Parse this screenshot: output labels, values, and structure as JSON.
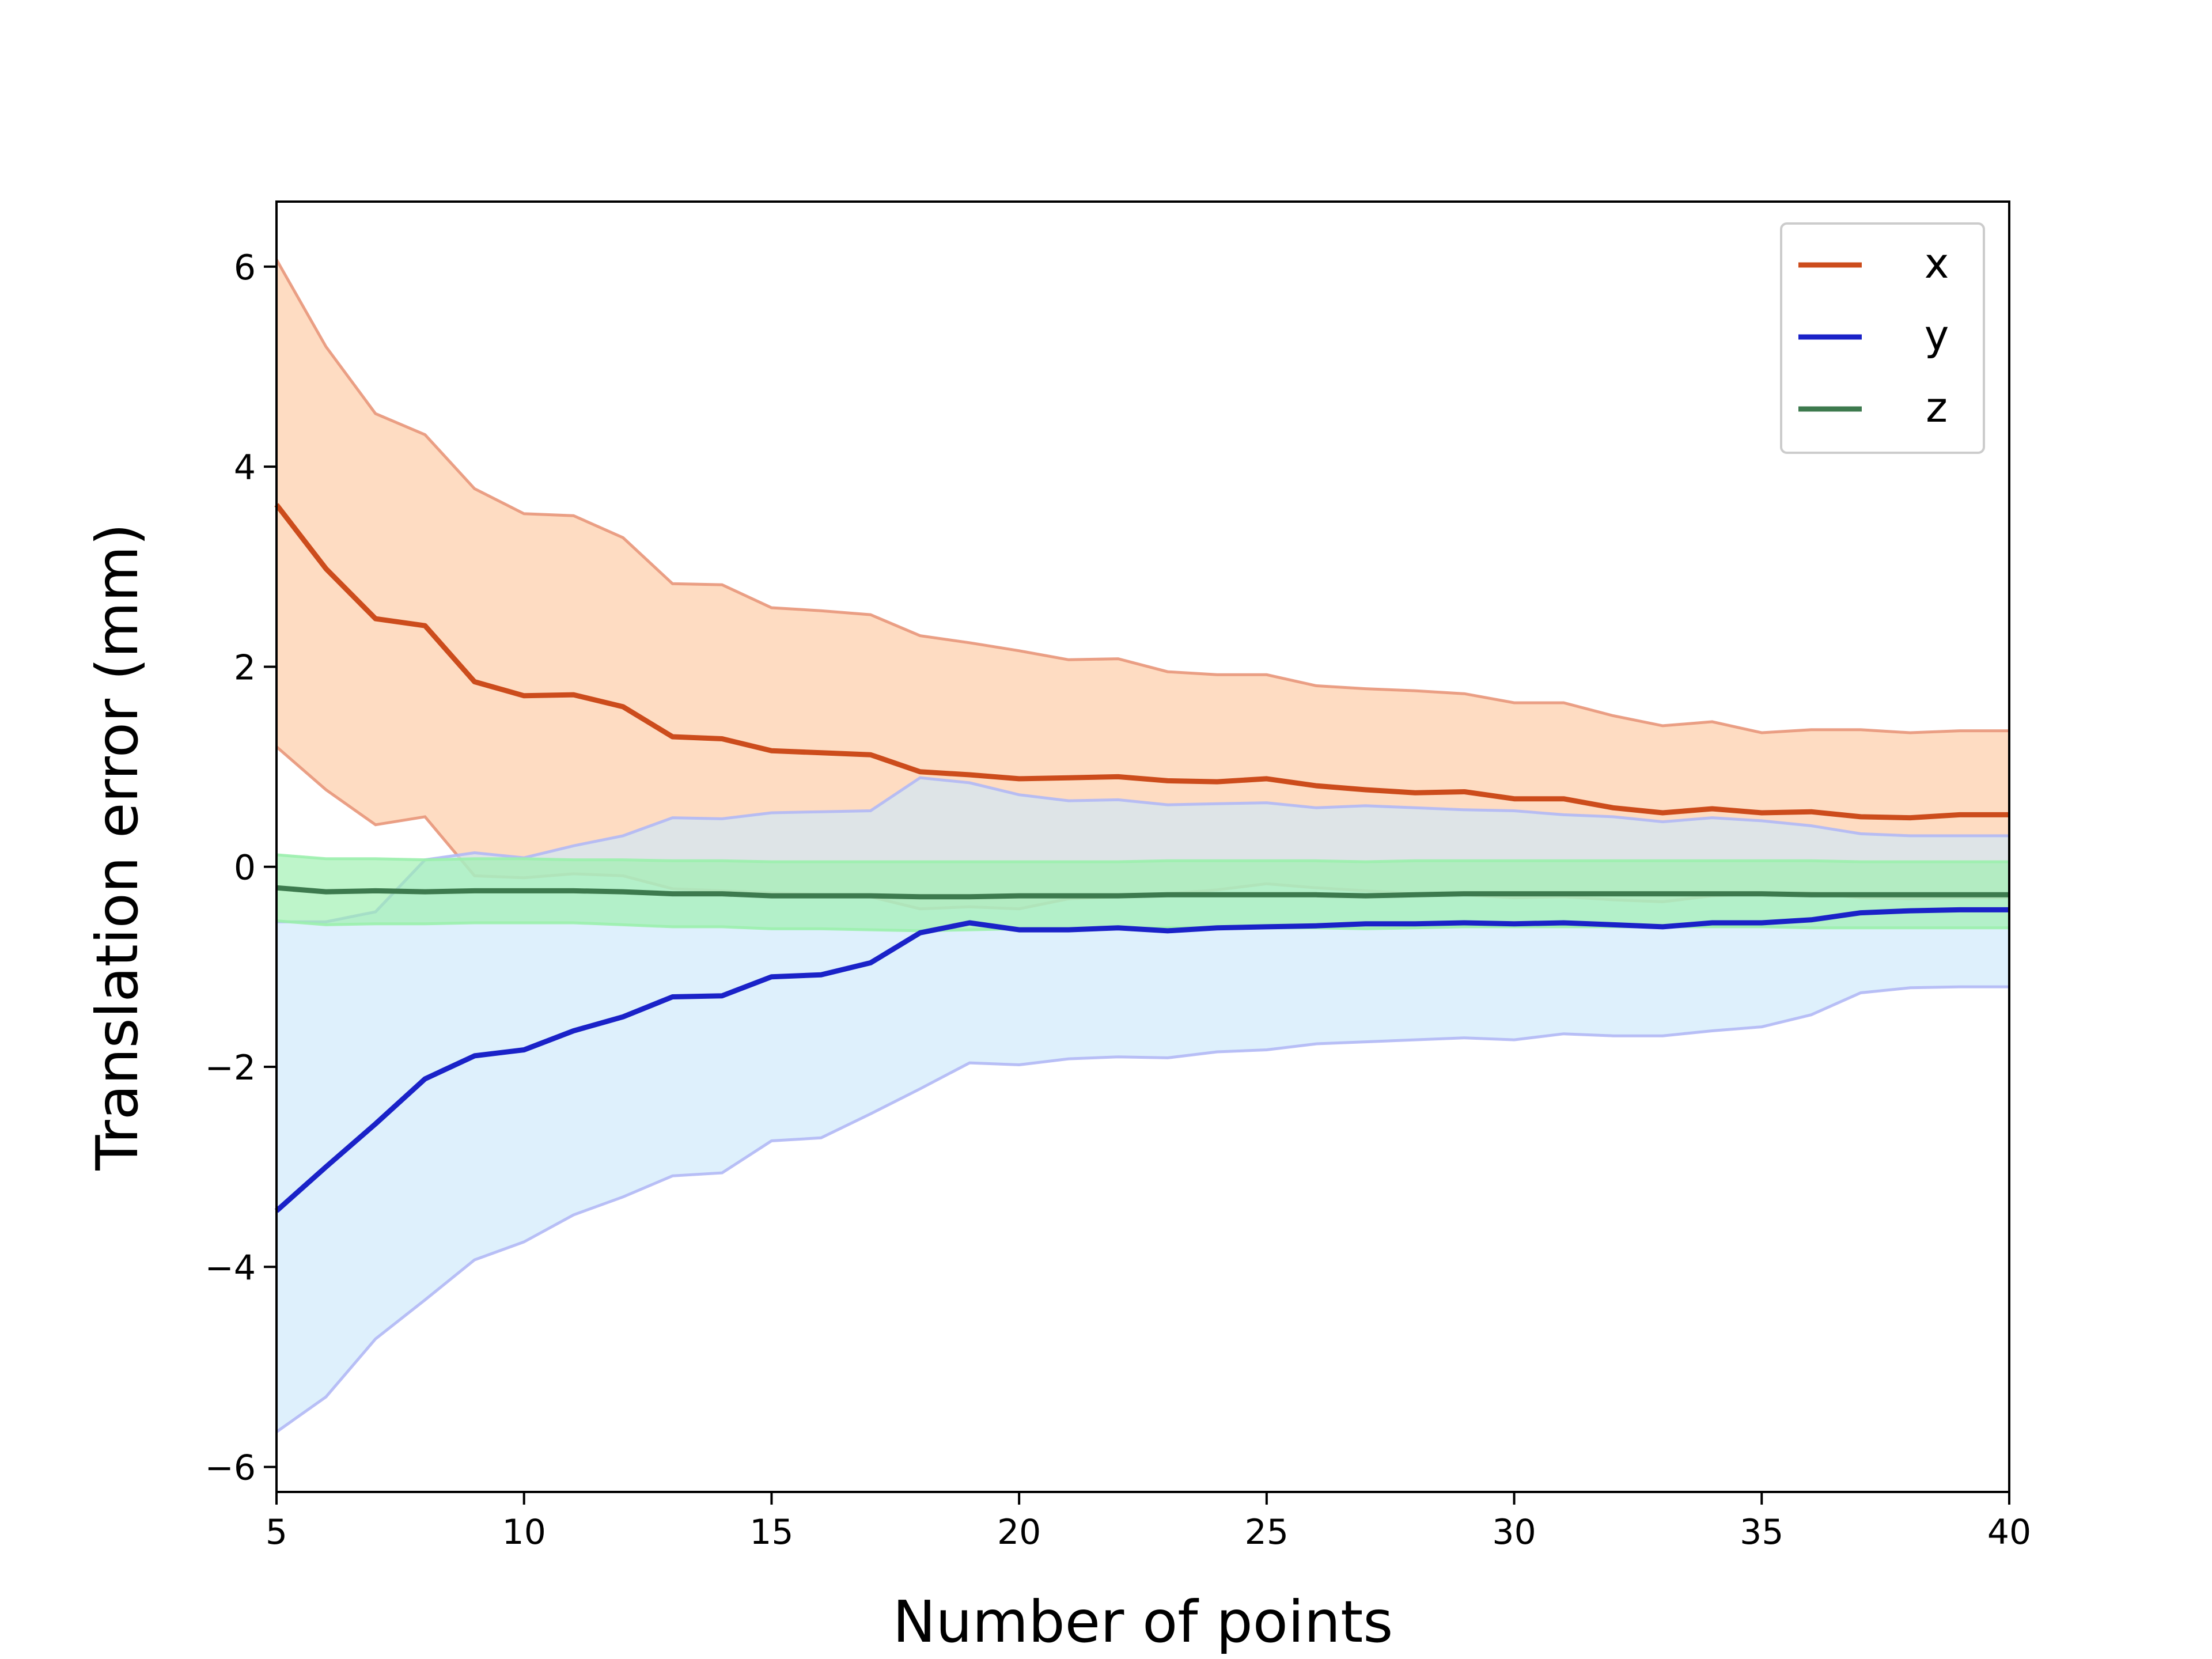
{
  "chart_data": {
    "type": "line",
    "xlabel": "Number of points",
    "ylabel": "Translation error (mm)",
    "xlim": [
      5,
      40
    ],
    "ylim": [
      -6.25,
      6.65
    ],
    "xticks": [
      5,
      10,
      15,
      20,
      25,
      30,
      35,
      40
    ],
    "yticks": [
      -6,
      -4,
      -2,
      0,
      2,
      4,
      6
    ],
    "ytick_labels": [
      "−6",
      "−4",
      "−2",
      "0",
      "2",
      "4",
      "6"
    ],
    "grid": false,
    "legend_position": "top-right",
    "x": [
      5,
      6,
      7,
      8,
      9,
      10,
      11,
      12,
      13,
      14,
      15,
      16,
      17,
      18,
      19,
      20,
      21,
      22,
      23,
      24,
      25,
      26,
      27,
      28,
      29,
      30,
      31,
      32,
      33,
      34,
      35,
      36,
      37,
      38,
      39,
      40
    ],
    "series": [
      {
        "name": "x",
        "color": "#cc4c1c",
        "band_color": "#fdc9a1",
        "band_edge_color": "#e8967a",
        "values": [
          3.62,
          2.98,
          2.48,
          2.41,
          1.85,
          1.71,
          1.72,
          1.6,
          1.3,
          1.28,
          1.16,
          1.14,
          1.12,
          0.95,
          0.92,
          0.88,
          0.89,
          0.9,
          0.86,
          0.85,
          0.88,
          0.81,
          0.77,
          0.74,
          0.75,
          0.68,
          0.68,
          0.59,
          0.54,
          0.58,
          0.54,
          0.55,
          0.5,
          0.49,
          0.52,
          0.52
        ],
        "upper": [
          6.07,
          5.2,
          4.53,
          4.32,
          3.78,
          3.53,
          3.51,
          3.29,
          2.83,
          2.82,
          2.59,
          2.56,
          2.52,
          2.31,
          2.24,
          2.16,
          2.07,
          2.08,
          1.95,
          1.92,
          1.92,
          1.81,
          1.78,
          1.76,
          1.73,
          1.64,
          1.64,
          1.51,
          1.41,
          1.45,
          1.34,
          1.37,
          1.37,
          1.34,
          1.36,
          1.36
        ],
        "lower": [
          1.2,
          0.77,
          0.42,
          0.5,
          -0.09,
          -0.11,
          -0.07,
          -0.09,
          -0.22,
          -0.24,
          -0.26,
          -0.28,
          -0.3,
          -0.42,
          -0.4,
          -0.42,
          -0.32,
          -0.3,
          -0.27,
          -0.23,
          -0.17,
          -0.21,
          -0.24,
          -0.27,
          -0.28,
          -0.31,
          -0.3,
          -0.33,
          -0.35,
          -0.29,
          -0.27,
          -0.26,
          -0.31,
          -0.32,
          -0.31,
          -0.31
        ]
      },
      {
        "name": "y",
        "color": "#1a22c8",
        "band_color": "#cde8fb",
        "band_edge_color": "#b1b8f5",
        "values": [
          -3.44,
          -3.0,
          -2.57,
          -2.12,
          -1.89,
          -1.83,
          -1.64,
          -1.5,
          -1.3,
          -1.29,
          -1.1,
          -1.08,
          -0.96,
          -0.66,
          -0.56,
          -0.63,
          -0.63,
          -0.61,
          -0.64,
          -0.61,
          -0.6,
          -0.59,
          -0.57,
          -0.57,
          -0.56,
          -0.57,
          -0.56,
          -0.58,
          -0.6,
          -0.56,
          -0.56,
          -0.53,
          -0.46,
          -0.44,
          -0.43,
          -0.43
        ],
        "upper": [
          -0.55,
          -0.55,
          -0.45,
          0.07,
          0.14,
          0.09,
          0.21,
          0.31,
          0.49,
          0.48,
          0.54,
          0.55,
          0.56,
          0.89,
          0.84,
          0.72,
          0.66,
          0.67,
          0.62,
          0.63,
          0.64,
          0.59,
          0.61,
          0.59,
          0.57,
          0.56,
          0.52,
          0.5,
          0.45,
          0.49,
          0.46,
          0.41,
          0.33,
          0.31,
          0.31,
          0.31
        ],
        "lower": [
          -5.65,
          -5.3,
          -4.72,
          -4.33,
          -3.93,
          -3.75,
          -3.48,
          -3.3,
          -3.09,
          -3.06,
          -2.74,
          -2.71,
          -2.47,
          -2.22,
          -1.96,
          -1.98,
          -1.92,
          -1.9,
          -1.91,
          -1.85,
          -1.83,
          -1.77,
          -1.75,
          -1.73,
          -1.71,
          -1.73,
          -1.67,
          -1.69,
          -1.69,
          -1.64,
          -1.6,
          -1.48,
          -1.26,
          -1.21,
          -1.2,
          -1.2
        ]
      },
      {
        "name": "z",
        "color": "#3d7a4e",
        "band_color": "#9bf0ad",
        "band_edge_color": "#9bf0ad",
        "values": [
          -0.21,
          -0.25,
          -0.24,
          -0.25,
          -0.24,
          -0.24,
          -0.24,
          -0.25,
          -0.27,
          -0.27,
          -0.29,
          -0.29,
          -0.29,
          -0.3,
          -0.3,
          -0.29,
          -0.29,
          -0.29,
          -0.28,
          -0.28,
          -0.28,
          -0.28,
          -0.29,
          -0.28,
          -0.27,
          -0.27,
          -0.27,
          -0.27,
          -0.27,
          -0.27,
          -0.27,
          -0.28,
          -0.28,
          -0.28,
          -0.28,
          -0.28
        ],
        "upper": [
          0.12,
          0.08,
          0.08,
          0.07,
          0.08,
          0.08,
          0.07,
          0.07,
          0.06,
          0.06,
          0.05,
          0.05,
          0.05,
          0.05,
          0.05,
          0.05,
          0.05,
          0.05,
          0.06,
          0.06,
          0.06,
          0.06,
          0.05,
          0.06,
          0.06,
          0.06,
          0.06,
          0.06,
          0.06,
          0.06,
          0.06,
          0.06,
          0.05,
          0.05,
          0.05,
          0.05
        ],
        "lower": [
          -0.54,
          -0.58,
          -0.57,
          -0.57,
          -0.56,
          -0.56,
          -0.56,
          -0.58,
          -0.6,
          -0.6,
          -0.62,
          -0.62,
          -0.63,
          -0.64,
          -0.63,
          -0.62,
          -0.62,
          -0.62,
          -0.61,
          -0.61,
          -0.61,
          -0.61,
          -0.62,
          -0.61,
          -0.6,
          -0.6,
          -0.6,
          -0.6,
          -0.6,
          -0.6,
          -0.6,
          -0.61,
          -0.61,
          -0.61,
          -0.61,
          -0.61
        ]
      }
    ]
  }
}
